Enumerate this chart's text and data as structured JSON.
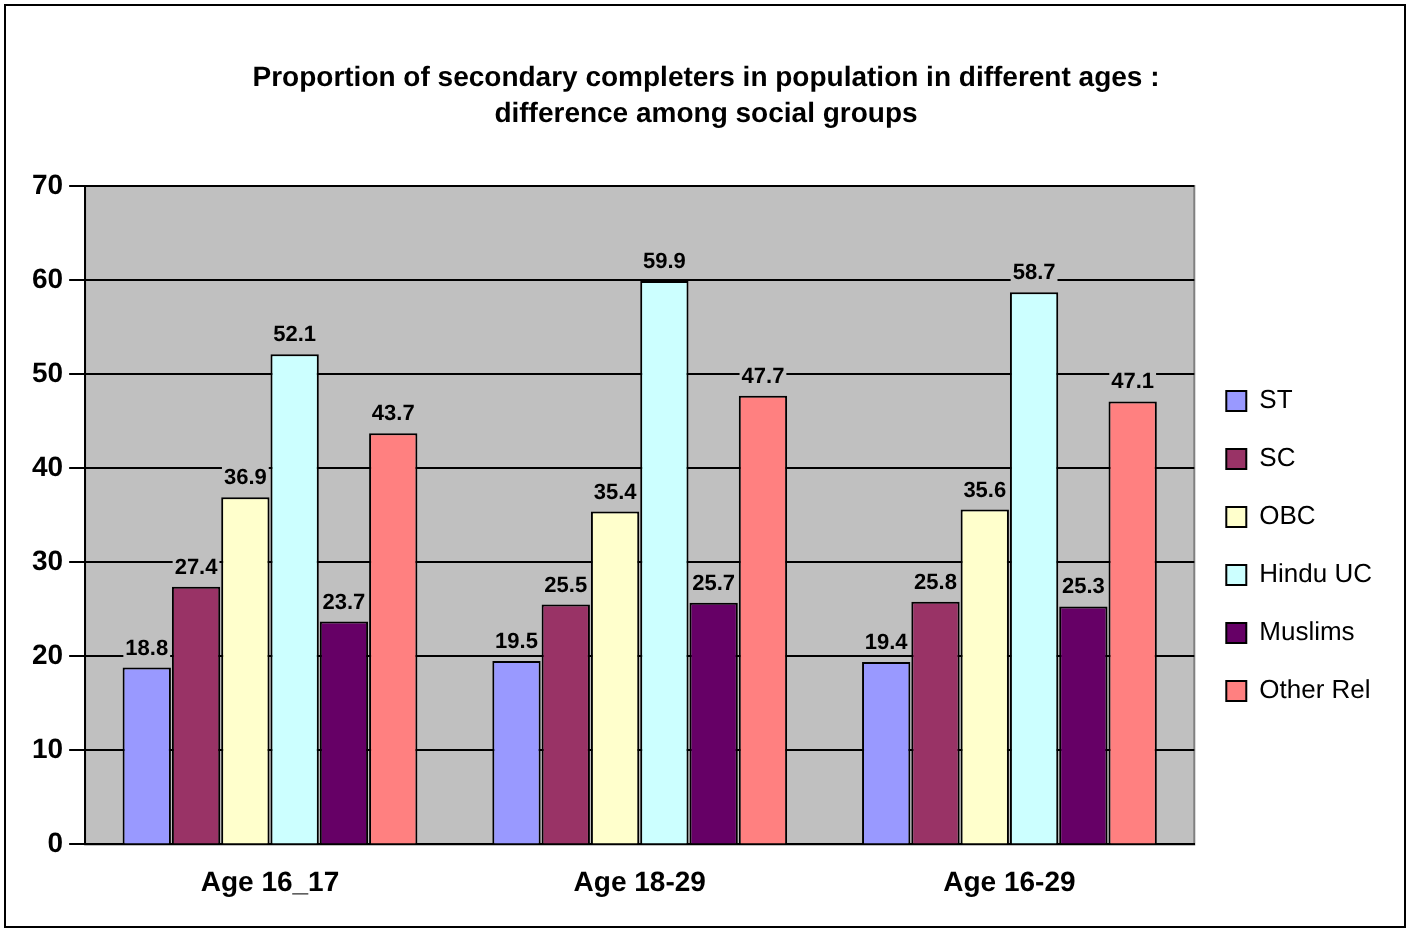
{
  "chart_data": {
    "type": "bar",
    "title": "Proportion of secondary completers in population in different ages : difference among social groups",
    "categories": [
      "Age 16_17",
      "Age 18-29",
      "Age 16-29"
    ],
    "series": [
      {
        "name": "ST",
        "color": "#9999ff",
        "values": [
          18.8,
          19.5,
          19.4
        ]
      },
      {
        "name": "SC",
        "color": "#993366",
        "values": [
          27.4,
          25.5,
          25.8
        ]
      },
      {
        "name": "OBC",
        "color": "#ffffcc",
        "values": [
          36.9,
          35.4,
          35.6
        ]
      },
      {
        "name": "Hindu UC",
        "color": "#ccffff",
        "values": [
          52.1,
          59.9,
          58.7
        ]
      },
      {
        "name": "Muslims",
        "color": "#660066",
        "values": [
          23.7,
          25.7,
          25.3
        ]
      },
      {
        "name": "Other Rel",
        "color": "#ff8080",
        "values": [
          43.7,
          47.7,
          47.1
        ]
      }
    ],
    "ylim": [
      0,
      70
    ],
    "yticks": [
      0,
      10,
      20,
      30,
      40,
      50,
      60,
      70
    ],
    "grid": "y",
    "legend": "right",
    "data_labels": true
  }
}
